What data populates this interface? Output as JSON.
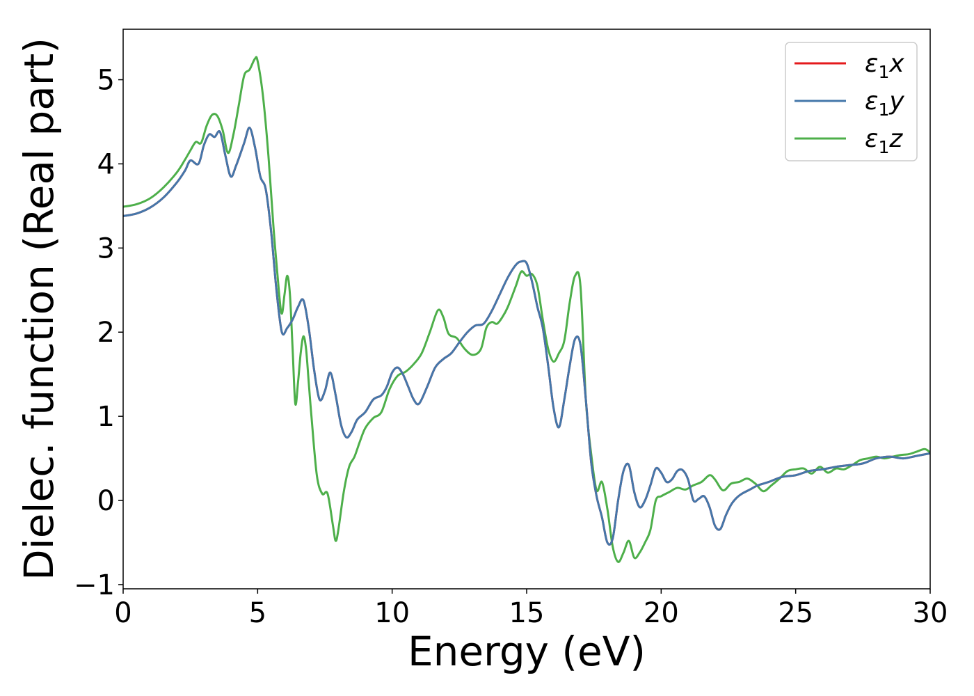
{
  "chart_data": {
    "type": "line",
    "xlabel": "Energy (eV)",
    "ylabel": "Dielec. function (Real part)",
    "xlim": [
      0,
      30
    ],
    "ylim": [
      -1.05,
      5.6
    ],
    "xticks": [
      0,
      5,
      10,
      15,
      20,
      25,
      30
    ],
    "xtick_labels": [
      "0",
      "5",
      "10",
      "15",
      "20",
      "25",
      "30"
    ],
    "yticks": [
      -1,
      0,
      1,
      2,
      3,
      4,
      5
    ],
    "ytick_labels": [
      "−1",
      "0",
      "1",
      "2",
      "3",
      "4",
      "5"
    ],
    "grid": false,
    "legend_position": "upper right",
    "series": [
      {
        "name": "ε1x",
        "legend": {
          "base": "ε",
          "sub": "1",
          "var": "x"
        },
        "color": "#e41a1c",
        "x": [
          0,
          0.5,
          1,
          1.5,
          2,
          2.3,
          2.5,
          2.8,
          3.0,
          3.2,
          3.4,
          3.6,
          3.8,
          4.0,
          4.2,
          4.5,
          4.7,
          4.9,
          5.1,
          5.3,
          5.5,
          5.7,
          5.9,
          6.1,
          6.3,
          6.5,
          6.7,
          6.9,
          7.1,
          7.3,
          7.5,
          7.7,
          7.9,
          8.1,
          8.3,
          8.5,
          8.7,
          9.0,
          9.3,
          9.6,
          9.8,
          10.0,
          10.2,
          10.4,
          10.6,
          10.8,
          11.0,
          11.3,
          11.6,
          11.9,
          12.2,
          12.5,
          12.8,
          13.1,
          13.4,
          13.7,
          14.0,
          14.3,
          14.6,
          14.8,
          15.0,
          15.2,
          15.4,
          15.6,
          15.8,
          16.0,
          16.2,
          16.4,
          16.6,
          16.8,
          17.0,
          17.2,
          17.4,
          17.6,
          17.8,
          18.0,
          18.2,
          18.4,
          18.6,
          18.8,
          19.0,
          19.2,
          19.4,
          19.6,
          19.8,
          20.0,
          20.2,
          20.4,
          20.6,
          20.8,
          21.0,
          21.2,
          21.4,
          21.6,
          21.8,
          22.0,
          22.2,
          22.4,
          22.6,
          22.8,
          23.0,
          23.3,
          23.6,
          24.0,
          24.5,
          25.0,
          25.5,
          26.0,
          26.5,
          27.0,
          27.5,
          28.0,
          28.5,
          29.0,
          29.5,
          30.0
        ],
        "y": [
          3.38,
          3.41,
          3.48,
          3.6,
          3.78,
          3.92,
          4.04,
          4.0,
          4.22,
          4.35,
          4.32,
          4.38,
          4.1,
          3.85,
          3.98,
          4.25,
          4.43,
          4.2,
          3.85,
          3.7,
          3.2,
          2.5,
          2.0,
          2.05,
          2.15,
          2.3,
          2.38,
          2.05,
          1.55,
          1.2,
          1.3,
          1.52,
          1.25,
          0.9,
          0.75,
          0.82,
          0.96,
          1.05,
          1.2,
          1.25,
          1.35,
          1.52,
          1.58,
          1.5,
          1.35,
          1.2,
          1.15,
          1.35,
          1.58,
          1.68,
          1.75,
          1.88,
          2.0,
          2.08,
          2.1,
          2.25,
          2.45,
          2.65,
          2.8,
          2.84,
          2.82,
          2.6,
          2.3,
          2.05,
          1.6,
          1.1,
          0.87,
          1.2,
          1.6,
          1.92,
          1.85,
          1.2,
          0.45,
          0.05,
          -0.2,
          -0.5,
          -0.45,
          0.0,
          0.35,
          0.42,
          0.1,
          -0.08,
          0.0,
          0.18,
          0.38,
          0.33,
          0.22,
          0.25,
          0.35,
          0.36,
          0.25,
          0.0,
          0.02,
          0.05,
          -0.08,
          -0.3,
          -0.34,
          -0.18,
          -0.05,
          0.03,
          0.08,
          0.13,
          0.18,
          0.22,
          0.28,
          0.3,
          0.35,
          0.37,
          0.4,
          0.42,
          0.44,
          0.5,
          0.52,
          0.5,
          0.53,
          0.56
        ]
      },
      {
        "name": "ε1y",
        "legend": {
          "base": "ε",
          "sub": "1",
          "var": "y"
        },
        "color": "#4477aa",
        "x": [
          0,
          0.5,
          1,
          1.5,
          2,
          2.3,
          2.5,
          2.8,
          3.0,
          3.2,
          3.4,
          3.6,
          3.8,
          4.0,
          4.2,
          4.5,
          4.7,
          4.9,
          5.1,
          5.3,
          5.5,
          5.7,
          5.9,
          6.1,
          6.3,
          6.5,
          6.7,
          6.9,
          7.1,
          7.3,
          7.5,
          7.7,
          7.9,
          8.1,
          8.3,
          8.5,
          8.7,
          9.0,
          9.3,
          9.6,
          9.8,
          10.0,
          10.2,
          10.4,
          10.6,
          10.8,
          11.0,
          11.3,
          11.6,
          11.9,
          12.2,
          12.5,
          12.8,
          13.1,
          13.4,
          13.7,
          14.0,
          14.3,
          14.6,
          14.8,
          15.0,
          15.2,
          15.4,
          15.6,
          15.8,
          16.0,
          16.2,
          16.4,
          16.6,
          16.8,
          17.0,
          17.2,
          17.4,
          17.6,
          17.8,
          18.0,
          18.2,
          18.4,
          18.6,
          18.8,
          19.0,
          19.2,
          19.4,
          19.6,
          19.8,
          20.0,
          20.2,
          20.4,
          20.6,
          20.8,
          21.0,
          21.2,
          21.4,
          21.6,
          21.8,
          22.0,
          22.2,
          22.4,
          22.6,
          22.8,
          23.0,
          23.3,
          23.6,
          24.0,
          24.5,
          25.0,
          25.5,
          26.0,
          26.5,
          27.0,
          27.5,
          28.0,
          28.5,
          29.0,
          29.5,
          30.0
        ],
        "y": [
          3.38,
          3.41,
          3.48,
          3.6,
          3.78,
          3.92,
          4.04,
          4.0,
          4.22,
          4.35,
          4.32,
          4.38,
          4.1,
          3.85,
          3.98,
          4.25,
          4.43,
          4.2,
          3.85,
          3.7,
          3.2,
          2.5,
          2.0,
          2.05,
          2.15,
          2.3,
          2.38,
          2.05,
          1.55,
          1.2,
          1.3,
          1.52,
          1.25,
          0.9,
          0.75,
          0.82,
          0.96,
          1.05,
          1.2,
          1.25,
          1.35,
          1.52,
          1.58,
          1.5,
          1.35,
          1.2,
          1.15,
          1.35,
          1.58,
          1.68,
          1.75,
          1.88,
          2.0,
          2.08,
          2.1,
          2.25,
          2.45,
          2.65,
          2.8,
          2.84,
          2.82,
          2.6,
          2.3,
          2.05,
          1.6,
          1.1,
          0.87,
          1.2,
          1.6,
          1.92,
          1.85,
          1.2,
          0.45,
          0.05,
          -0.2,
          -0.5,
          -0.45,
          0.0,
          0.35,
          0.42,
          0.1,
          -0.08,
          0.0,
          0.18,
          0.38,
          0.33,
          0.22,
          0.25,
          0.35,
          0.36,
          0.25,
          0.0,
          0.02,
          0.05,
          -0.08,
          -0.3,
          -0.34,
          -0.18,
          -0.05,
          0.03,
          0.08,
          0.13,
          0.18,
          0.22,
          0.28,
          0.3,
          0.35,
          0.37,
          0.4,
          0.42,
          0.44,
          0.5,
          0.52,
          0.5,
          0.53,
          0.56
        ]
      },
      {
        "name": "ε1z",
        "legend": {
          "base": "ε",
          "sub": "1",
          "var": "z"
        },
        "color": "#4daf4a",
        "x": [
          0,
          0.5,
          1,
          1.5,
          2,
          2.3,
          2.5,
          2.7,
          2.9,
          3.1,
          3.3,
          3.5,
          3.7,
          3.9,
          4.1,
          4.3,
          4.5,
          4.7,
          4.9,
          5.0,
          5.2,
          5.4,
          5.6,
          5.8,
          5.9,
          6.0,
          6.1,
          6.2,
          6.3,
          6.4,
          6.5,
          6.6,
          6.7,
          6.8,
          6.9,
          7.0,
          7.2,
          7.4,
          7.6,
          7.8,
          7.9,
          8.0,
          8.2,
          8.4,
          8.6,
          8.8,
          9.0,
          9.3,
          9.6,
          9.9,
          10.2,
          10.5,
          10.8,
          11.1,
          11.4,
          11.7,
          11.9,
          12.1,
          12.4,
          12.7,
          13.0,
          13.3,
          13.5,
          13.7,
          13.9,
          14.1,
          14.3,
          14.6,
          14.8,
          15.0,
          15.2,
          15.4,
          15.6,
          15.8,
          16.0,
          16.2,
          16.4,
          16.6,
          16.8,
          17.0,
          17.2,
          17.4,
          17.6,
          17.8,
          18.0,
          18.2,
          18.4,
          18.6,
          18.8,
          19.0,
          19.2,
          19.4,
          19.6,
          19.8,
          20.0,
          20.3,
          20.6,
          20.9,
          21.2,
          21.5,
          21.8,
          22.0,
          22.3,
          22.6,
          22.9,
          23.2,
          23.5,
          23.8,
          24.1,
          24.4,
          24.7,
          25.0,
          25.3,
          25.6,
          25.9,
          26.2,
          26.5,
          26.8,
          27.1,
          27.4,
          27.7,
          28.0,
          28.3,
          28.6,
          28.9,
          29.2,
          29.5,
          29.8,
          30.0
        ],
        "y": [
          3.49,
          3.52,
          3.59,
          3.72,
          3.9,
          4.05,
          4.16,
          4.26,
          4.25,
          4.45,
          4.58,
          4.57,
          4.4,
          4.13,
          4.35,
          4.7,
          5.05,
          5.12,
          5.25,
          5.22,
          4.8,
          4.1,
          3.2,
          2.45,
          2.22,
          2.45,
          2.67,
          2.45,
          1.8,
          1.15,
          1.4,
          1.75,
          1.95,
          1.8,
          1.4,
          1.0,
          0.3,
          0.08,
          0.08,
          -0.3,
          -0.48,
          -0.35,
          0.1,
          0.4,
          0.52,
          0.7,
          0.86,
          0.98,
          1.05,
          1.32,
          1.48,
          1.53,
          1.62,
          1.75,
          2.0,
          2.26,
          2.18,
          1.98,
          1.93,
          1.8,
          1.73,
          1.8,
          2.05,
          2.12,
          2.1,
          2.18,
          2.3,
          2.55,
          2.72,
          2.67,
          2.69,
          2.55,
          2.15,
          1.8,
          1.65,
          1.75,
          1.9,
          2.35,
          2.67,
          2.55,
          1.2,
          0.55,
          0.12,
          0.22,
          -0.1,
          -0.55,
          -0.73,
          -0.62,
          -0.48,
          -0.68,
          -0.62,
          -0.5,
          -0.35,
          0.0,
          0.05,
          0.1,
          0.15,
          0.13,
          0.18,
          0.22,
          0.3,
          0.25,
          0.12,
          0.2,
          0.22,
          0.26,
          0.2,
          0.11,
          0.18,
          0.26,
          0.35,
          0.37,
          0.38,
          0.32,
          0.4,
          0.33,
          0.38,
          0.37,
          0.42,
          0.48,
          0.5,
          0.52,
          0.5,
          0.52,
          0.54,
          0.55,
          0.58,
          0.61,
          0.57
        ]
      }
    ]
  }
}
